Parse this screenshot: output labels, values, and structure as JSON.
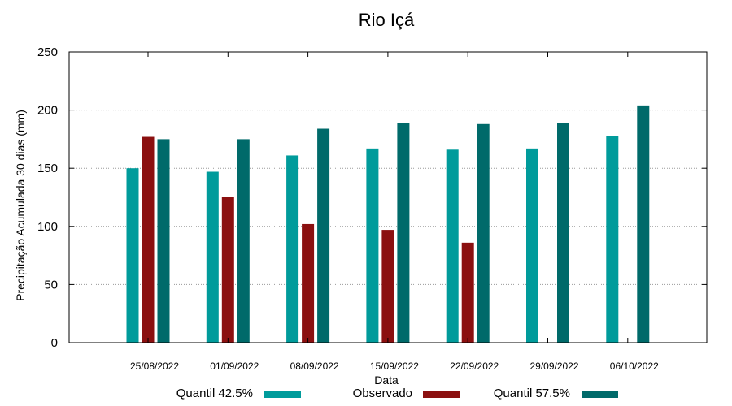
{
  "chart_data": {
    "type": "bar",
    "title": "Rio Içá",
    "xlabel": "Data",
    "ylabel": "Precipitação Acumulada 30 dias (mm)",
    "ylim": [
      0,
      250
    ],
    "yticks": [
      0,
      50,
      100,
      150,
      200,
      250
    ],
    "grid": true,
    "legend_position": "bottom",
    "categories": [
      "25/08/2022",
      "01/09/2022",
      "08/09/2022",
      "15/09/2022",
      "22/09/2022",
      "29/09/2022",
      "06/10/2022"
    ],
    "series": [
      {
        "name": "Quantil 42.5%",
        "color": "#009b9b",
        "values": [
          150,
          147,
          161,
          167,
          166,
          167,
          178
        ]
      },
      {
        "name": "Observado",
        "color": "#8b1010",
        "values": [
          177,
          125,
          102,
          97,
          86,
          null,
          null
        ]
      },
      {
        "name": "Quantil 57.5%",
        "color": "#006a6a",
        "values": [
          175,
          175,
          184,
          189,
          188,
          189,
          204
        ]
      }
    ]
  }
}
